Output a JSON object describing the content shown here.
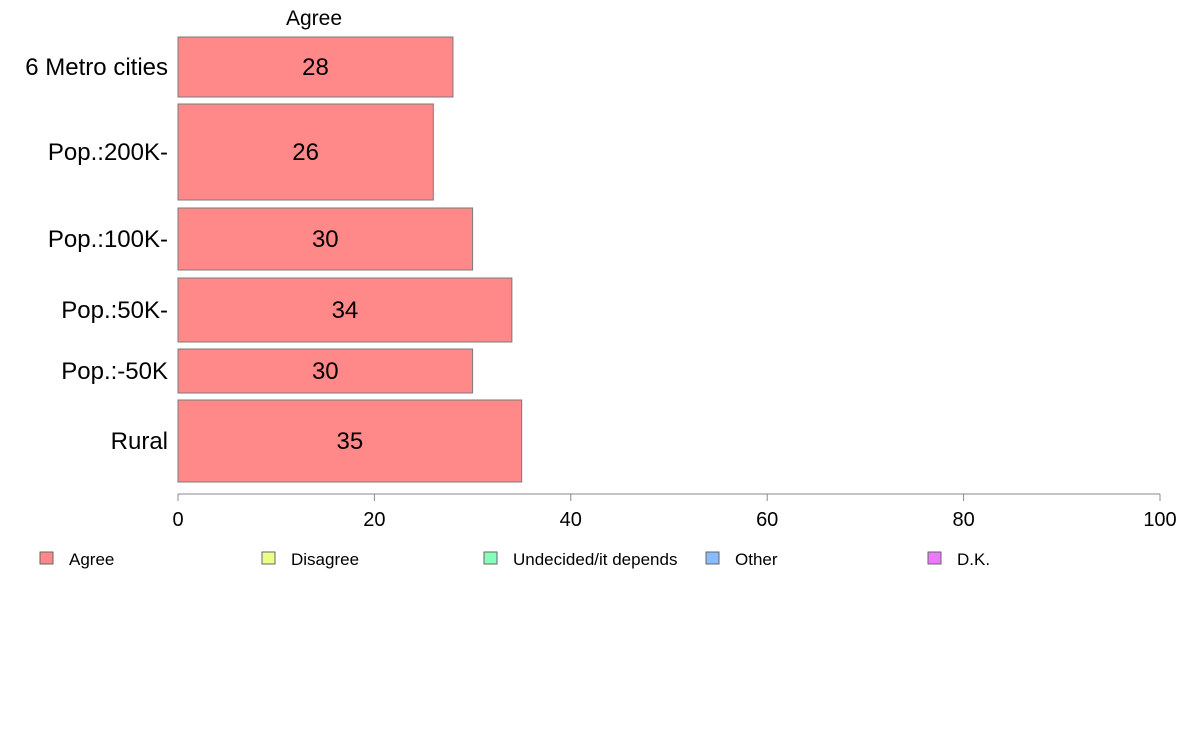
{
  "chart_data": {
    "type": "bar",
    "orientation": "horizontal",
    "title": "Agree",
    "categories": [
      "6 Metro cities",
      "Pop.:200K-",
      "Pop.:100K-",
      "Pop.:50K-",
      "Pop.:-50K",
      "Rural"
    ],
    "series": [
      {
        "name": "Agree",
        "values": [
          28,
          26,
          30,
          34,
          30,
          35
        ],
        "color": "#ff8888"
      }
    ],
    "xlim": [
      0,
      100
    ],
    "xticks": [
      0,
      20,
      40,
      60,
      80,
      100
    ],
    "grid": false,
    "legend_position": "bottom",
    "legend": [
      {
        "label": "Agree",
        "color": "#ff8888"
      },
      {
        "label": "Disagree",
        "color": "#eeff88"
      },
      {
        "label": "Undecided/it depends",
        "color": "#88ffbb"
      },
      {
        "label": "Other",
        "color": "#88bbff"
      },
      {
        "label": "D.K.",
        "color": "#ee77ff"
      }
    ]
  }
}
